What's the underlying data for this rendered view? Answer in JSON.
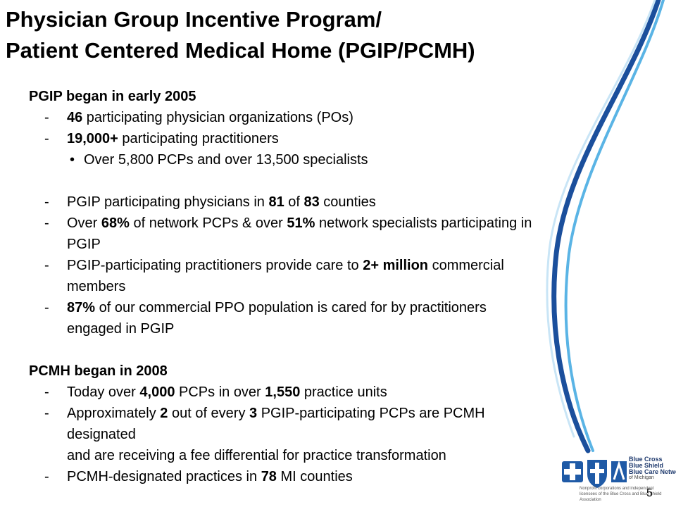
{
  "title": {
    "line1": "Physician Group Incentive Program/",
    "line2": "Patient Centered Medical Home (PGIP/PCMH)"
  },
  "pgip": {
    "heading": "PGIP began in early 2005",
    "item1": {
      "bold": "46",
      "text": " participating physician organizations (POs)"
    },
    "item2": {
      "bold": "19,000+",
      "text": " participating practitioners"
    },
    "sub1": "Over 5,800 PCPs  and  over 13,500 specialists",
    "item3": {
      "pre": "PGIP participating physicians in ",
      "b1": "81",
      "mid": " of ",
      "b2": "83",
      "post": " counties"
    },
    "item4": {
      "pre": "Over ",
      "b1": "68%",
      "mid": " of network PCPs & over ",
      "b2": "51%",
      "post": " network specialists participating in",
      "line2": "PGIP"
    },
    "item5": {
      "pre": "PGIP-participating practitioners provide care to ",
      "b1": "2+ million",
      "post": " commercial",
      "line2": "members"
    },
    "item6": {
      "b1": "87%",
      "post": " of our commercial PPO population is cared for by practitioners",
      "line2": "engaged in PGIP"
    }
  },
  "pcmh": {
    "heading": "PCMH began in 2008",
    "item1": {
      "pre": "Today over ",
      "b1": "4,000",
      "mid": " PCPs in over ",
      "b2": "1,550",
      "post": " practice units"
    },
    "item2": {
      "pre": "Approximately ",
      "b1": "2",
      "mid": " out of every ",
      "b2": "3",
      "post": " PGIP-participating PCPs are PCMH",
      "line2": "designated",
      "line3": "and are receiving a fee differential for practice transformation"
    },
    "item3": {
      "pre": "PCMH-designated practices in ",
      "b1": "78",
      "post": " MI counties"
    }
  },
  "page_number": "5",
  "logo": {
    "line1": "Blue Cross",
    "line2": "Blue Shield",
    "line3": "Blue Care Network",
    "sub": "of Michigan",
    "note": "Nonprofit corporations and independent licensees of the Blue Cross and Blue Shield Association"
  },
  "colors": {
    "swoosh_dark": "#1b4f9c",
    "swoosh_light": "#5ab4e5",
    "logo_blue": "#1f5aa6"
  },
  "bullet_glyphs": {
    "dash": "-",
    "dot": "•"
  }
}
